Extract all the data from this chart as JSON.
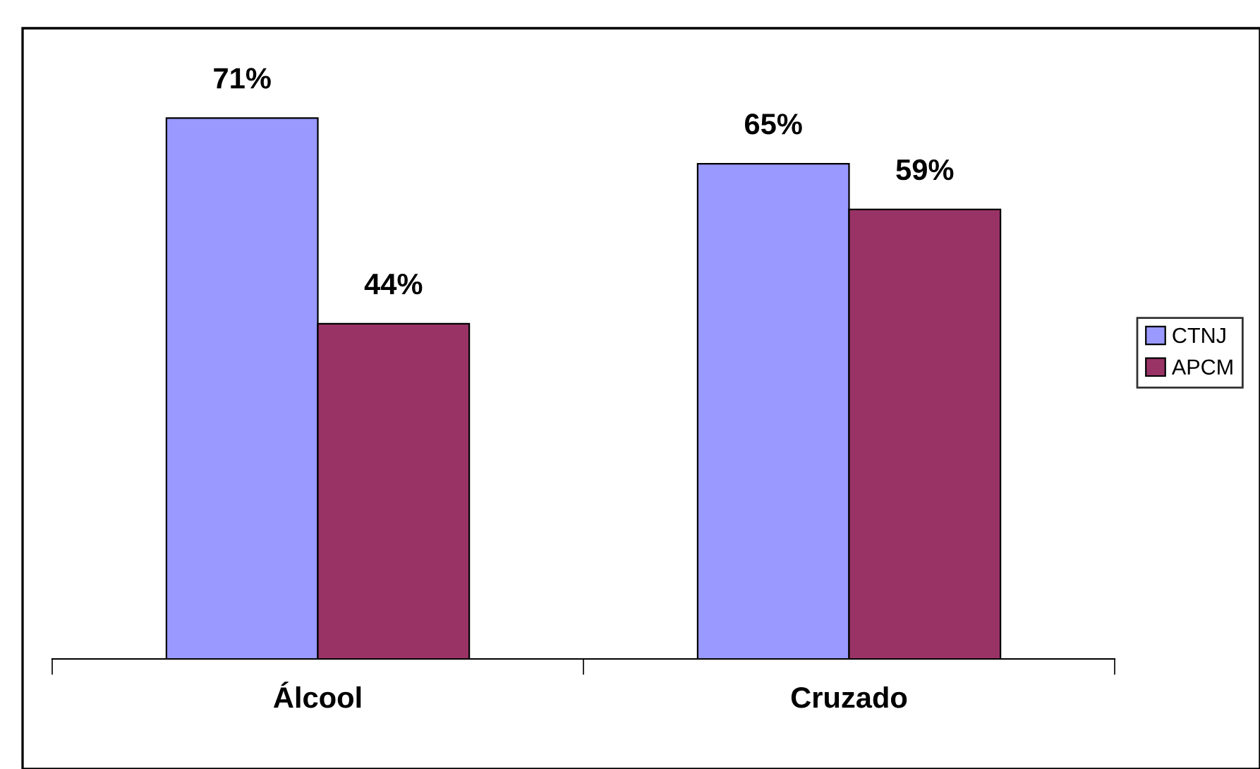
{
  "chart_data": {
    "type": "bar",
    "categories": [
      "Álcool",
      "Cruzado"
    ],
    "series": [
      {
        "name": "CTNJ",
        "color": "#9999ff",
        "values": [
          71,
          65
        ],
        "value_labels": [
          "71%",
          "65%"
        ]
      },
      {
        "name": "APCM",
        "color": "#993366",
        "values": [
          44,
          59
        ],
        "value_labels": [
          "44%",
          "59%"
        ]
      }
    ],
    "grid": false,
    "legend": "right"
  }
}
